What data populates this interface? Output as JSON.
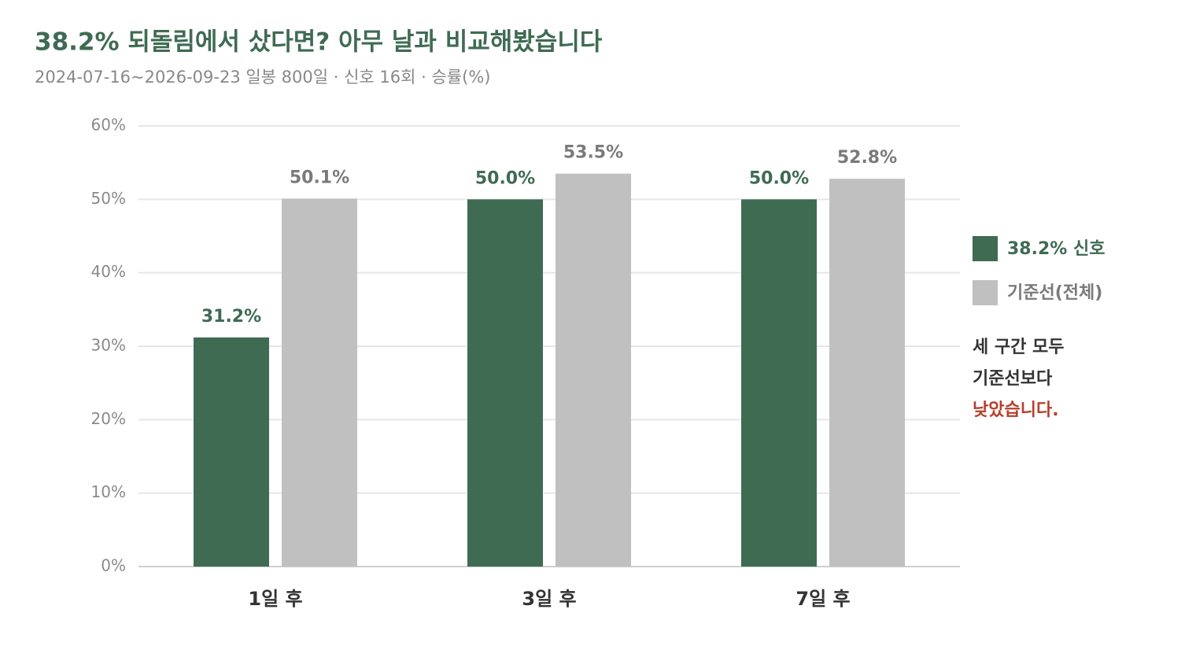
{
  "chart_data": {
    "type": "bar",
    "title": "38.2% 되돌림에서 샀다면? 아무 날과 비교해봤습니다",
    "subtitle": "2024-07-16~2026-09-23 일봉 800일 · 신호 16회 · 승률(%)",
    "categories": [
      "1일 후",
      "3일 후",
      "7일 후"
    ],
    "series": [
      {
        "name": "38.2% 신호",
        "color": "#3f6b53",
        "values": [
          31.2,
          50.0,
          50.0
        ],
        "value_labels": [
          "31.2%",
          "50.0%",
          "50.0%"
        ]
      },
      {
        "name": "기준선(전체)",
        "color": "#c0c0c0",
        "values": [
          50.1,
          53.5,
          52.8
        ],
        "value_labels": [
          "50.1%",
          "53.5%",
          "52.8%"
        ]
      }
    ],
    "ylim": [
      0,
      60
    ],
    "yticks": [
      {
        "value": 0,
        "label": "0%"
      },
      {
        "value": 10,
        "label": "10%"
      },
      {
        "value": 20,
        "label": "20%"
      },
      {
        "value": 30,
        "label": "30%"
      },
      {
        "value": 40,
        "label": "40%"
      },
      {
        "value": 50,
        "label": "50%"
      },
      {
        "value": 60,
        "label": "60%"
      }
    ],
    "grid": true,
    "legend": "right",
    "annotation": {
      "lines": [
        "세 구간 모두",
        "기준선보다",
        "낮았습니다."
      ],
      "colors": [
        "#333333",
        "#333333",
        "#b5402e"
      ]
    }
  }
}
